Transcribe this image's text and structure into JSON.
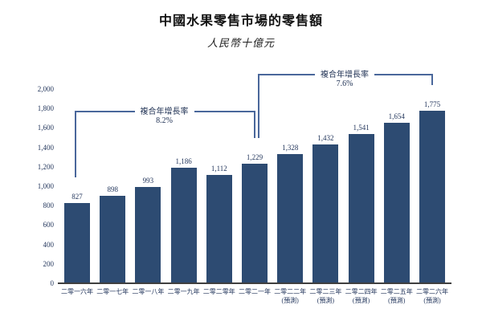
{
  "chart_data": {
    "type": "bar",
    "title": "中國水果零售市場的零售額",
    "subtitle": "人民幣十億元",
    "xlabel": "",
    "ylabel": "",
    "ylim": [
      0,
      2000
    ],
    "grid": false,
    "yticks": [
      {
        "v": 0,
        "label": "0"
      },
      {
        "v": 200,
        "label": "200"
      },
      {
        "v": 400,
        "label": "400"
      },
      {
        "v": 600,
        "label": "600"
      },
      {
        "v": 800,
        "label": "800"
      },
      {
        "v": 1000,
        "label": "1,000"
      },
      {
        "v": 1200,
        "label": "1,200"
      },
      {
        "v": 1400,
        "label": "1,400"
      },
      {
        "v": 1600,
        "label": "1,600"
      },
      {
        "v": 1800,
        "label": "1,800"
      },
      {
        "v": 2000,
        "label": "2,000"
      }
    ],
    "categories": [
      {
        "label": "二零一六年",
        "sublabel": ""
      },
      {
        "label": "二零一七年",
        "sublabel": ""
      },
      {
        "label": "二零一八年",
        "sublabel": ""
      },
      {
        "label": "二零一九年",
        "sublabel": ""
      },
      {
        "label": "二零二零年",
        "sublabel": ""
      },
      {
        "label": "二零二一年",
        "sublabel": ""
      },
      {
        "label": "二零二二年",
        "sublabel": "(預測)"
      },
      {
        "label": "二零二三年",
        "sublabel": "(預測)"
      },
      {
        "label": "二零二四年",
        "sublabel": "(預測)"
      },
      {
        "label": "二零二五年",
        "sublabel": "(預測)"
      },
      {
        "label": "二零二六年",
        "sublabel": "(預測)"
      }
    ],
    "values": [
      827,
      898,
      993,
      1186,
      1112,
      1229,
      1328,
      1432,
      1541,
      1654,
      1775
    ],
    "value_labels": [
      "827",
      "898",
      "993",
      "1,186",
      "1,112",
      "1,229",
      "1,328",
      "1,432",
      "1,541",
      "1,654",
      "1,775"
    ],
    "annotations": [
      {
        "label": "複合年增長率",
        "value": "8.2%",
        "from": 0,
        "to": 5
      },
      {
        "label": "複合年增長率",
        "value": "7.6%",
        "from": 5,
        "to": 10
      }
    ],
    "colors": {
      "bar": "#2d4b72",
      "bracket_line": "#4a679b",
      "axis_line": "#3f3f3f",
      "label_text": "#23365c",
      "title_text": "#111111"
    }
  }
}
